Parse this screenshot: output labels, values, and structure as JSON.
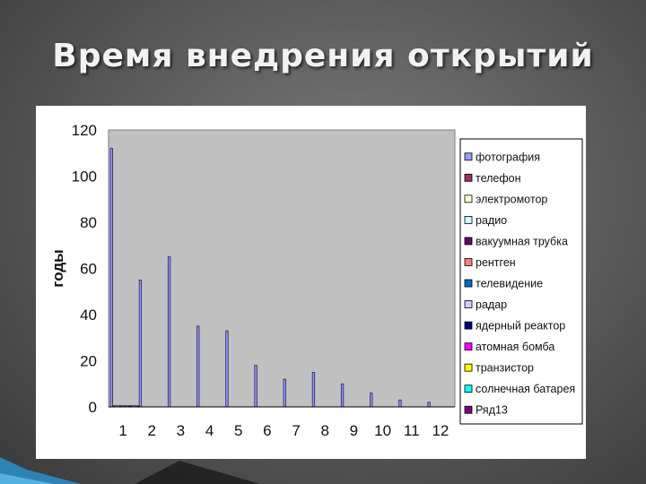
{
  "slide": {
    "title": "Время внедрения открытий"
  },
  "colors": {
    "plot_area": "#c0c0c0",
    "bar": "#9999ff",
    "bar_edge": "#1f1f5c",
    "accent": "#2a8fc9"
  },
  "chart_data": {
    "type": "bar",
    "title": "",
    "xlabel": "",
    "ylabel": "годы",
    "ylim": [
      0,
      120
    ],
    "yticks": [
      0,
      20,
      40,
      60,
      80,
      100,
      120
    ],
    "categories": [
      "1",
      "2",
      "3",
      "4",
      "5",
      "6",
      "7",
      "8",
      "9",
      "10",
      "11",
      "12"
    ],
    "grid": false,
    "legend_position": "right",
    "series": [
      {
        "name": "фотография",
        "color": "#9999ff",
        "values": [
          112,
          55,
          65,
          35,
          33,
          18,
          12,
          15,
          10,
          6,
          3,
          2
        ]
      },
      {
        "name": "телефон",
        "color": "#993366",
        "values": [
          0.5,
          null,
          null,
          null,
          null,
          null,
          null,
          null,
          null,
          null,
          null,
          null
        ]
      },
      {
        "name": "электромотор",
        "color": "#ffffcc",
        "values": [
          0.5,
          null,
          null,
          null,
          null,
          null,
          null,
          null,
          null,
          null,
          null,
          null
        ]
      },
      {
        "name": "радио",
        "color": "#ccffff",
        "values": [
          0.5,
          null,
          null,
          null,
          null,
          null,
          null,
          null,
          null,
          null,
          null,
          null
        ]
      },
      {
        "name": "вакуумная трубка",
        "color": "#660066",
        "values": [
          0.5,
          null,
          null,
          null,
          null,
          null,
          null,
          null,
          null,
          null,
          null,
          null
        ]
      },
      {
        "name": "рентген",
        "color": "#ff8080",
        "values": [
          0.5,
          null,
          null,
          null,
          null,
          null,
          null,
          null,
          null,
          null,
          null,
          null
        ]
      },
      {
        "name": "телевидение",
        "color": "#0066cc",
        "values": [
          0.5,
          null,
          null,
          null,
          null,
          null,
          null,
          null,
          null,
          null,
          null,
          null
        ]
      },
      {
        "name": "радар",
        "color": "#ccccff",
        "values": [
          0.5,
          null,
          null,
          null,
          null,
          null,
          null,
          null,
          null,
          null,
          null,
          null
        ]
      },
      {
        "name": "ядерный реактор",
        "color": "#000080",
        "values": [
          0.5,
          null,
          null,
          null,
          null,
          null,
          null,
          null,
          null,
          null,
          null,
          null
        ]
      },
      {
        "name": "атомная бомба",
        "color": "#ff00ff",
        "values": [
          0.5,
          null,
          null,
          null,
          null,
          null,
          null,
          null,
          null,
          null,
          null,
          null
        ]
      },
      {
        "name": "транзистор",
        "color": "#ffff00",
        "values": [
          0.5,
          null,
          null,
          null,
          null,
          null,
          null,
          null,
          null,
          null,
          null,
          null
        ]
      },
      {
        "name": "солнечная батарея",
        "color": "#00ffff",
        "values": [
          0.5,
          null,
          null,
          null,
          null,
          null,
          null,
          null,
          null,
          null,
          null,
          null
        ]
      },
      {
        "name": "Ряд13",
        "color": "#800080",
        "values": [
          0.5,
          null,
          null,
          null,
          null,
          null,
          null,
          null,
          null,
          null,
          null,
          null
        ]
      }
    ]
  }
}
